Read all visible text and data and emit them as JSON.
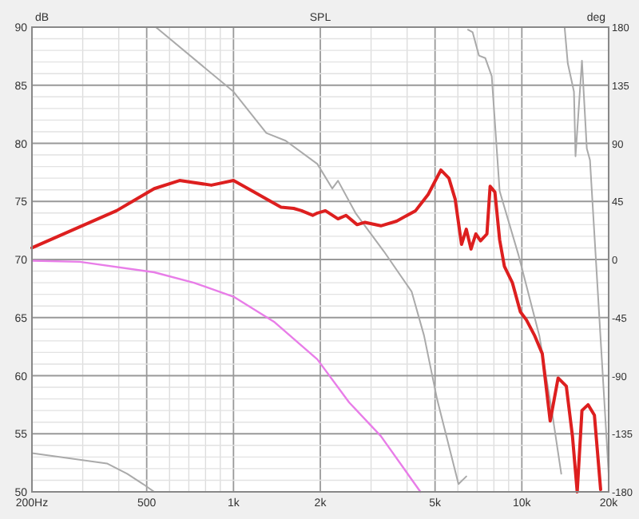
{
  "chart_data": {
    "type": "line",
    "title": "SPL",
    "ylabel": "dB",
    "y2label": "deg",
    "log": "x",
    "grid": true,
    "marker": "none",
    "line_style": "solid",
    "xlim": [
      200,
      20000
    ],
    "ylim": [
      50,
      90
    ],
    "y2lim": [
      -180,
      180
    ],
    "xticks": [
      {
        "value": 200,
        "label": "200Hz"
      },
      {
        "value": 300,
        "label": null
      },
      {
        "value": 400,
        "label": null
      },
      500,
      {
        "value": 600,
        "label": null
      },
      {
        "value": 700,
        "label": null
      },
      {
        "value": 800,
        "label": null
      },
      {
        "value": 900,
        "label": null
      },
      {
        "value": 1000,
        "label": "1k"
      },
      {
        "value": 2000,
        "label": "2k"
      },
      {
        "value": 3000,
        "label": null
      },
      {
        "value": 4000,
        "label": null
      },
      {
        "value": 5000,
        "label": "5k"
      },
      {
        "value": 6000,
        "label": null
      },
      {
        "value": 7000,
        "label": null
      },
      {
        "value": 8000,
        "label": null
      },
      {
        "value": 9000,
        "label": null
      },
      {
        "value": 10000,
        "label": "10k"
      },
      {
        "value": 20000,
        "label": "20k"
      }
    ],
    "yticks": [
      50,
      {
        "value": 51,
        "label": null
      },
      {
        "value": 52,
        "label": null
      },
      {
        "value": 53,
        "label": null
      },
      {
        "value": 54,
        "label": null
      },
      55,
      {
        "value": 56,
        "label": null
      },
      {
        "value": 57,
        "label": null
      },
      {
        "value": 58,
        "label": null
      },
      {
        "value": 59,
        "label": null
      },
      60,
      {
        "value": 61,
        "label": null
      },
      {
        "value": 62,
        "label": null
      },
      {
        "value": 63,
        "label": null
      },
      {
        "value": 64,
        "label": null
      },
      65,
      {
        "value": 66,
        "label": null
      },
      {
        "value": 67,
        "label": null
      },
      {
        "value": 68,
        "label": null
      },
      {
        "value": 69,
        "label": null
      },
      70,
      {
        "value": 71,
        "label": null
      },
      {
        "value": 72,
        "label": null
      },
      {
        "value": 73,
        "label": null
      },
      {
        "value": 74,
        "label": null
      },
      75,
      {
        "value": 76,
        "label": null
      },
      {
        "value": 77,
        "label": null
      },
      {
        "value": 78,
        "label": null
      },
      {
        "value": 79,
        "label": null
      },
      80,
      {
        "value": 81,
        "label": null
      },
      {
        "value": 82,
        "label": null
      },
      {
        "value": 83,
        "label": null
      },
      {
        "value": 84,
        "label": null
      },
      85,
      {
        "value": 86,
        "label": null
      },
      {
        "value": 87,
        "label": null
      },
      {
        "value": 88,
        "label": null
      },
      {
        "value": 89,
        "label": null
      },
      90
    ],
    "y2ticks": [
      -180,
      -135,
      -90,
      -45,
      0,
      45,
      90,
      135,
      180
    ],
    "series": [
      {
        "color": "#aaaaaa",
        "axis": "y2",
        "x": [
          200,
          364,
          428,
          486,
          531,
          535,
          538,
          1000,
          1300,
          1517,
          1954,
          2200,
          2304,
          2650,
          3330,
          4150,
          4580,
          5080,
          6030,
          6420,
          6480,
          6503,
          6751,
          7100,
          7470,
          7862,
          8375,
          9750,
          11500,
          12700,
          13700,
          13900,
          14070,
          14430,
          15160,
          15350,
          16160,
          16800,
          17230,
          20000
        ],
        "values": [
          -150,
          -158,
          -166,
          -174,
          -180,
          null,
          180,
          130,
          98,
          92,
          74,
          55,
          61,
          36,
          6,
          -25,
          -59,
          -108,
          -174,
          -168,
          null,
          178,
          176,
          158,
          156,
          142,
          53,
          3,
          -59,
          -117,
          -166,
          null,
          180,
          152,
          130,
          80,
          154,
          86,
          77,
          -166
        ]
      },
      {
        "color": "#e87de8",
        "x": [
          200,
          293,
          531,
          729,
          1000,
          1389,
          1954,
          2518,
          3243,
          4450
        ],
        "values": [
          69.9,
          69.8,
          68.9,
          68.0,
          66.8,
          64.6,
          61.4,
          57.7,
          54.8,
          50
        ]
      },
      {
        "color": "#dd1f1f",
        "x": [
          200,
          393,
          531,
          650,
          838,
          1000,
          1179,
          1462,
          1617,
          1722,
          1882,
          1954,
          2083,
          2304,
          2456,
          2684,
          2857,
          3243,
          3678,
          4280,
          4733,
          5238,
          5584,
          5871,
          6178,
          6418,
          6664,
          6923,
          7190,
          7567,
          7762,
          8064,
          8375,
          8700,
          9273,
          9880,
          10370,
          11050,
          11770,
          12540,
          13360,
          14260,
          14980,
          15560,
          16160,
          16970,
          17850,
          18760
        ],
        "values": [
          71,
          74.2,
          76.1,
          76.8,
          76.4,
          76.8,
          75.8,
          74.5,
          74.4,
          74.2,
          73.8,
          74.0,
          74.2,
          73.5,
          73.8,
          73.0,
          73.2,
          72.9,
          73.3,
          74.2,
          75.6,
          77.7,
          77.0,
          75.2,
          71.3,
          72.6,
          70.9,
          72.2,
          71.6,
          72.2,
          76.3,
          75.8,
          71.7,
          69.4,
          68.0,
          65.5,
          64.8,
          63.5,
          61.9,
          56.1,
          59.8,
          59.1,
          54.8,
          50,
          57.0,
          57.5,
          56.6,
          50.2
        ]
      }
    ]
  }
}
